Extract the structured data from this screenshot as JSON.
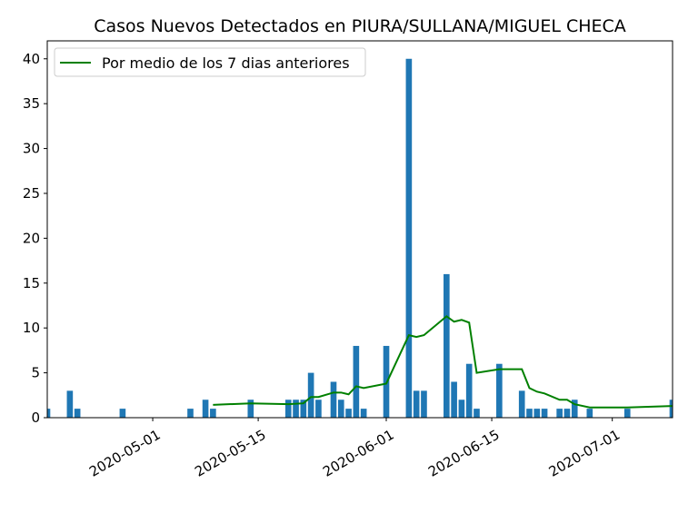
{
  "chart_data": {
    "type": "bar",
    "title": "Casos Nuevos Detectados en PIURA/SULLANA/MIGUEL CHECA",
    "xlabel": "",
    "ylabel": "",
    "ylim": [
      0,
      42
    ],
    "xlim": [
      "2020-04-17",
      "2020-07-09"
    ],
    "yticks": [
      0,
      5,
      10,
      15,
      20,
      25,
      30,
      35,
      40
    ],
    "xticks": [
      "2020-05-01",
      "2020-05-15",
      "2020-06-01",
      "2020-06-15",
      "2020-07-01"
    ],
    "grid": false,
    "legend_position": "top-left",
    "colors": {
      "bars": "#1f77b4",
      "line": "#008000"
    },
    "bars": [
      {
        "date": "2020-04-17",
        "value": 1
      },
      {
        "date": "2020-04-20",
        "value": 3
      },
      {
        "date": "2020-04-21",
        "value": 1
      },
      {
        "date": "2020-04-27",
        "value": 1
      },
      {
        "date": "2020-05-06",
        "value": 1
      },
      {
        "date": "2020-05-08",
        "value": 2
      },
      {
        "date": "2020-05-09",
        "value": 1
      },
      {
        "date": "2020-05-14",
        "value": 2
      },
      {
        "date": "2020-05-19",
        "value": 2
      },
      {
        "date": "2020-05-20",
        "value": 2
      },
      {
        "date": "2020-05-21",
        "value": 2
      },
      {
        "date": "2020-05-22",
        "value": 5
      },
      {
        "date": "2020-05-23",
        "value": 2
      },
      {
        "date": "2020-05-25",
        "value": 4
      },
      {
        "date": "2020-05-26",
        "value": 2
      },
      {
        "date": "2020-05-27",
        "value": 1
      },
      {
        "date": "2020-05-28",
        "value": 8
      },
      {
        "date": "2020-05-29",
        "value": 1
      },
      {
        "date": "2020-06-01",
        "value": 8
      },
      {
        "date": "2020-06-04",
        "value": 40
      },
      {
        "date": "2020-06-05",
        "value": 3
      },
      {
        "date": "2020-06-06",
        "value": 3
      },
      {
        "date": "2020-06-09",
        "value": 16
      },
      {
        "date": "2020-06-10",
        "value": 4
      },
      {
        "date": "2020-06-11",
        "value": 2
      },
      {
        "date": "2020-06-12",
        "value": 6
      },
      {
        "date": "2020-06-13",
        "value": 1
      },
      {
        "date": "2020-06-16",
        "value": 6
      },
      {
        "date": "2020-06-19",
        "value": 3
      },
      {
        "date": "2020-06-20",
        "value": 1
      },
      {
        "date": "2020-06-21",
        "value": 1
      },
      {
        "date": "2020-06-22",
        "value": 1
      },
      {
        "date": "2020-06-24",
        "value": 1
      },
      {
        "date": "2020-06-25",
        "value": 1
      },
      {
        "date": "2020-06-26",
        "value": 2
      },
      {
        "date": "2020-06-28",
        "value": 1
      },
      {
        "date": "2020-07-03",
        "value": 1
      },
      {
        "date": "2020-07-09",
        "value": 2
      }
    ],
    "series": [
      {
        "name": "Por medio de los 7 dias anteriores",
        "points": [
          {
            "date": "2020-05-09",
            "value": 1.43
          },
          {
            "date": "2020-05-14",
            "value": 1.6
          },
          {
            "date": "2020-05-19",
            "value": 1.5
          },
          {
            "date": "2020-05-21",
            "value": 1.6
          },
          {
            "date": "2020-05-22",
            "value": 2.3
          },
          {
            "date": "2020-05-23",
            "value": 2.3
          },
          {
            "date": "2020-05-25",
            "value": 2.8
          },
          {
            "date": "2020-05-26",
            "value": 2.8
          },
          {
            "date": "2020-05-27",
            "value": 2.6
          },
          {
            "date": "2020-05-28",
            "value": 3.5
          },
          {
            "date": "2020-05-29",
            "value": 3.3
          },
          {
            "date": "2020-06-01",
            "value": 3.8
          },
          {
            "date": "2020-06-04",
            "value": 9.2
          },
          {
            "date": "2020-06-05",
            "value": 9.0
          },
          {
            "date": "2020-06-06",
            "value": 9.2
          },
          {
            "date": "2020-06-09",
            "value": 11.3
          },
          {
            "date": "2020-06-10",
            "value": 10.7
          },
          {
            "date": "2020-06-11",
            "value": 10.9
          },
          {
            "date": "2020-06-12",
            "value": 10.6
          },
          {
            "date": "2020-06-13",
            "value": 5.0
          },
          {
            "date": "2020-06-16",
            "value": 5.4
          },
          {
            "date": "2020-06-19",
            "value": 5.4
          },
          {
            "date": "2020-06-20",
            "value": 3.3
          },
          {
            "date": "2020-06-21",
            "value": 2.9
          },
          {
            "date": "2020-06-22",
            "value": 2.7
          },
          {
            "date": "2020-06-24",
            "value": 2.0
          },
          {
            "date": "2020-06-25",
            "value": 2.0
          },
          {
            "date": "2020-06-26",
            "value": 1.5
          },
          {
            "date": "2020-06-28",
            "value": 1.14
          },
          {
            "date": "2020-07-03",
            "value": 1.14
          },
          {
            "date": "2020-07-09",
            "value": 1.3
          }
        ]
      }
    ]
  }
}
